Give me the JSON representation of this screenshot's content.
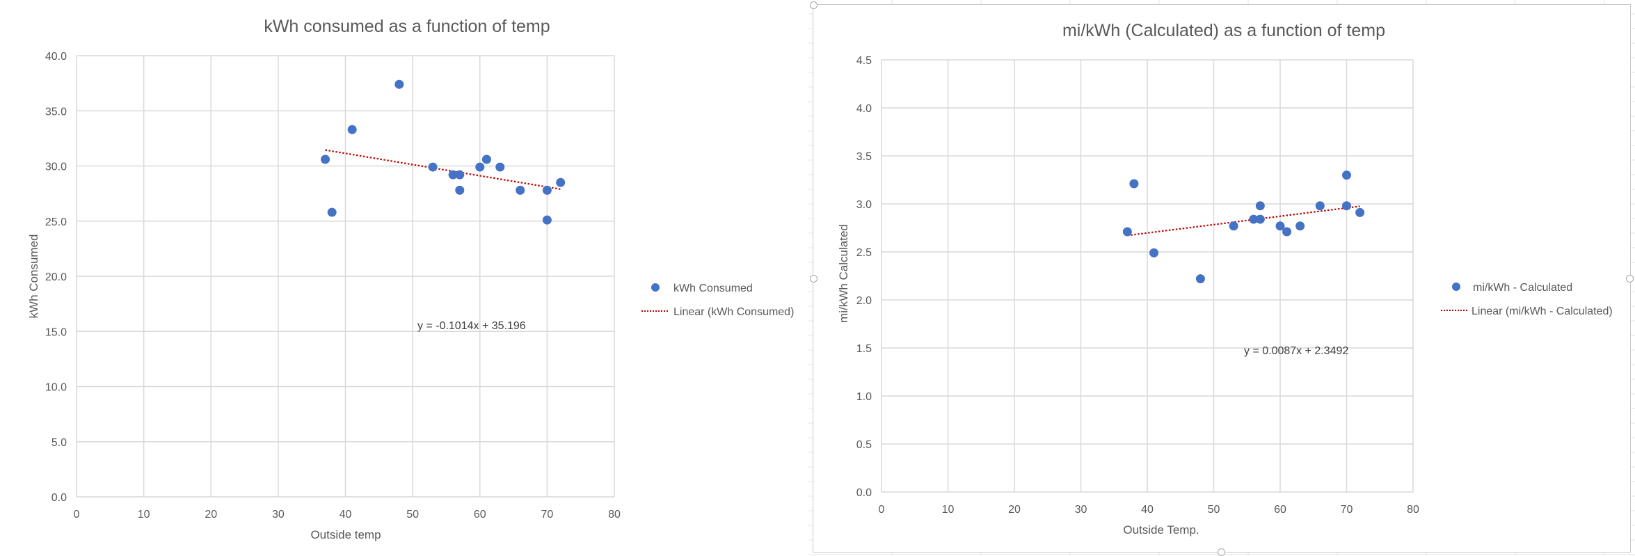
{
  "charts": [
    {
      "title": "kWh consumed as a function of temp",
      "xlabel": "Outside temp",
      "ylabel": "kWh Consumed",
      "legend": {
        "series_label": "kWh Consumed",
        "trend_label": "Linear (kWh Consumed)"
      },
      "equation": "y = -0.1014x + 35.196",
      "x_ticks": [
        "0",
        "10",
        "20",
        "30",
        "40",
        "50",
        "60",
        "70",
        "80"
      ],
      "y_ticks": [
        "0.0",
        "5.0",
        "10.0",
        "15.0",
        "20.0",
        "25.0",
        "30.0",
        "35.0",
        "40.0"
      ]
    },
    {
      "title": "mi/kWh (Calculated) as a function of temp",
      "xlabel": "Outside Temp.",
      "ylabel": "mi/kWh Calculated",
      "legend": {
        "series_label": "mi/kWh - Calculated",
        "trend_label": "Linear (mi/kWh - Calculated)"
      },
      "equation": "y = 0.0087x + 2.3492",
      "x_ticks": [
        "0",
        "10",
        "20",
        "30",
        "40",
        "50",
        "60",
        "70",
        "80"
      ],
      "y_ticks": [
        "0.0",
        "0.5",
        "1.0",
        "1.5",
        "2.0",
        "2.5",
        "3.0",
        "3.5",
        "4.0",
        "4.5"
      ]
    }
  ],
  "chart_data": [
    {
      "type": "scatter",
      "title": "kWh consumed as a function of temp",
      "xlabel": "Outside temp",
      "ylabel": "kWh Consumed",
      "xlim": [
        0,
        80
      ],
      "ylim": [
        0,
        40
      ],
      "grid": true,
      "legend_position": "right",
      "marker_color": "#4472c4",
      "trend_color": "#c00000",
      "series": [
        {
          "name": "kWh Consumed",
          "x": [
            37,
            38,
            41,
            48,
            53,
            56,
            57,
            57,
            60,
            61,
            63,
            66,
            70,
            70,
            72
          ],
          "y": [
            30.6,
            25.8,
            33.3,
            37.4,
            29.9,
            29.2,
            29.2,
            27.8,
            29.9,
            30.6,
            29.9,
            27.8,
            27.8,
            25.1,
            28.5
          ]
        }
      ],
      "trendline": {
        "name": "Linear (kWh Consumed)",
        "slope": -0.1014,
        "intercept": 35.196,
        "x_range": [
          37,
          72
        ],
        "equation": "y = -0.1014x + 35.196"
      }
    },
    {
      "type": "scatter",
      "title": "mi/kWh (Calculated) as a function of temp",
      "xlabel": "Outside Temp.",
      "ylabel": "mi/kWh Calculated",
      "xlim": [
        0,
        80
      ],
      "ylim": [
        0,
        4.5
      ],
      "grid": true,
      "legend_position": "right",
      "marker_color": "#4472c4",
      "trend_color": "#c00000",
      "series": [
        {
          "name": "mi/kWh - Calculated",
          "x": [
            37,
            38,
            41,
            48,
            53,
            56,
            57,
            57,
            60,
            61,
            63,
            66,
            70,
            70,
            72
          ],
          "y": [
            2.71,
            3.21,
            2.49,
            2.22,
            2.77,
            2.84,
            2.98,
            2.84,
            2.77,
            2.71,
            2.77,
            2.98,
            3.3,
            2.98,
            2.91
          ]
        }
      ],
      "trendline": {
        "name": "Linear (mi/kWh - Calculated)",
        "slope": 0.0087,
        "intercept": 2.3492,
        "x_range": [
          37,
          72
        ],
        "equation": "y = 0.0087x + 2.3492"
      }
    }
  ]
}
